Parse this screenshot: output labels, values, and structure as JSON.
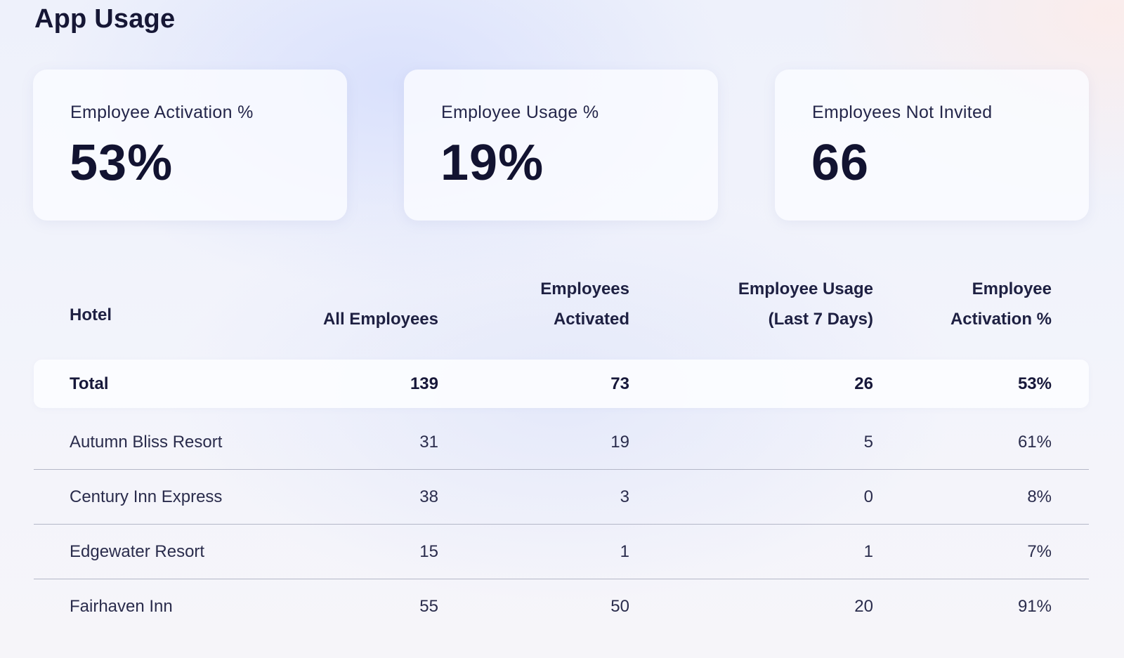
{
  "page": {
    "title": "App Usage"
  },
  "kpis": [
    {
      "label": "Employee Activation %",
      "value": "53%"
    },
    {
      "label": "Employee Usage %",
      "value": "19%"
    },
    {
      "label": "Employees Not Invited",
      "value": "66"
    }
  ],
  "table": {
    "headers": {
      "hotel": "Hotel",
      "all_employees": "All Employees",
      "employees_activated": [
        "Employees",
        "Activated"
      ],
      "employee_usage": [
        "Employee Usage",
        "(Last 7 Days)"
      ],
      "activation_pct": [
        "Employee",
        "Activation %"
      ]
    },
    "total": {
      "hotel": "Total",
      "all_employees": "139",
      "employees_activated": "73",
      "employee_usage": "26",
      "activation_pct": "53%"
    },
    "rows": [
      {
        "hotel": "Autumn Bliss Resort",
        "all_employees": "31",
        "employees_activated": "19",
        "employee_usage": "5",
        "activation_pct": "61%"
      },
      {
        "hotel": "Century Inn Express",
        "all_employees": "38",
        "employees_activated": "3",
        "employee_usage": "0",
        "activation_pct": "8%"
      },
      {
        "hotel": "Edgewater Resort",
        "all_employees": "15",
        "employees_activated": "1",
        "employee_usage": "1",
        "activation_pct": "7%"
      },
      {
        "hotel": "Fairhaven Inn",
        "all_employees": "55",
        "employees_activated": "50",
        "employee_usage": "20",
        "activation_pct": "91%"
      }
    ]
  }
}
